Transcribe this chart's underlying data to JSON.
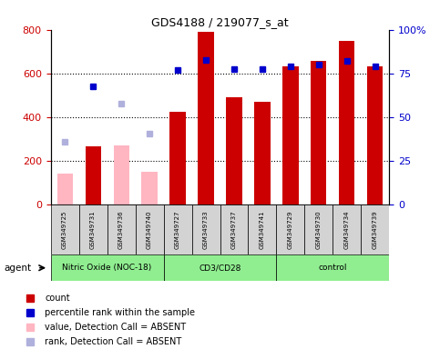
{
  "title": "GDS4188 / 219077_s_at",
  "samples": [
    "GSM349725",
    "GSM349731",
    "GSM349736",
    "GSM349740",
    "GSM349727",
    "GSM349733",
    "GSM349737",
    "GSM349741",
    "GSM349729",
    "GSM349730",
    "GSM349734",
    "GSM349739"
  ],
  "groups": [
    {
      "label": "Nitric Oxide (NOC-18)",
      "start": 0,
      "end": 4
    },
    {
      "label": "CD3/CD28",
      "start": 4,
      "end": 8
    },
    {
      "label": "control",
      "start": 8,
      "end": 12
    }
  ],
  "count_values": [
    null,
    265,
    null,
    null,
    425,
    790,
    490,
    470,
    630,
    655,
    750,
    630
  ],
  "count_absent": [
    140,
    null,
    270,
    148,
    null,
    null,
    null,
    null,
    null,
    null,
    null,
    null
  ],
  "percentile_present": [
    null,
    540,
    null,
    null,
    615,
    660,
    620,
    618,
    630,
    640,
    655,
    630
  ],
  "percentile_absent": [
    285,
    null,
    460,
    325,
    null,
    null,
    null,
    null,
    null,
    null,
    null,
    null
  ],
  "ylim_left": [
    0,
    800
  ],
  "ylim_right": [
    0,
    100
  ],
  "yticks_left": [
    0,
    200,
    400,
    600,
    800
  ],
  "yticks_right": [
    0,
    25,
    50,
    75,
    100
  ],
  "bar_width": 0.55,
  "count_color": "#cc0000",
  "count_absent_color": "#ffb6c1",
  "percentile_color": "#0000cc",
  "percentile_absent_color": "#b0b0dd",
  "group_color": "#90ee90",
  "sample_box_color": "#d3d3d3",
  "legend_items": [
    {
      "color": "#cc0000",
      "label": "count",
      "marker": "s"
    },
    {
      "color": "#0000cc",
      "label": "percentile rank within the sample",
      "marker": "s"
    },
    {
      "color": "#ffb6c1",
      "label": "value, Detection Call = ABSENT",
      "marker": "s"
    },
    {
      "color": "#b0b0dd",
      "label": "rank, Detection Call = ABSENT",
      "marker": "s"
    }
  ],
  "agent_label": "agent",
  "ylabel_left_color": "#cc0000",
  "ylabel_right_color": "#0000cc",
  "grid_lines": [
    200,
    400,
    600
  ],
  "fig_width": 4.83,
  "fig_height": 3.84,
  "dpi": 100
}
